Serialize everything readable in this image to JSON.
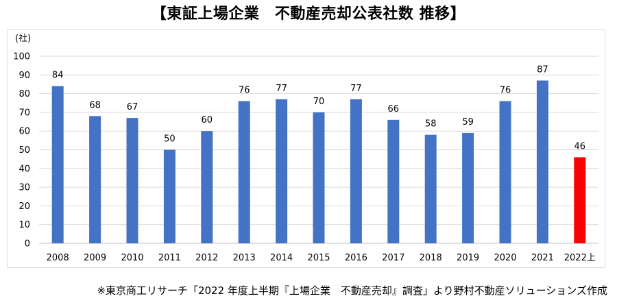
{
  "title": "【東証上場企業　不動産売却公表社数 推移】",
  "footnote": "※東京商工リサーチ「2022 年度上半期『上場企業　不動産売却』調査」より野村不動産ソリューションズ作成",
  "chart_data": {
    "type": "bar",
    "title": "【東証上場企業　不動産売却公表社数 推移】",
    "xlabel": "",
    "ylabel": "(社)",
    "ylim": [
      0,
      100
    ],
    "yticks": [
      0,
      10,
      20,
      30,
      40,
      50,
      60,
      70,
      80,
      90,
      100
    ],
    "grid": true,
    "legend": "none",
    "categories": [
      "2008",
      "2009",
      "2010",
      "2011",
      "2012",
      "2013",
      "2014",
      "2015",
      "2016",
      "2017",
      "2018",
      "2019",
      "2020",
      "2021",
      "2022上"
    ],
    "values": [
      84,
      68,
      67,
      50,
      60,
      76,
      77,
      70,
      77,
      66,
      58,
      59,
      76,
      87,
      46
    ],
    "colors": [
      "#4472c4",
      "#4472c4",
      "#4472c4",
      "#4472c4",
      "#4472c4",
      "#4472c4",
      "#4472c4",
      "#4472c4",
      "#4472c4",
      "#4472c4",
      "#4472c4",
      "#4472c4",
      "#4472c4",
      "#4472c4",
      "#ff0000"
    ],
    "gridline_color": "#d9d9d9"
  }
}
